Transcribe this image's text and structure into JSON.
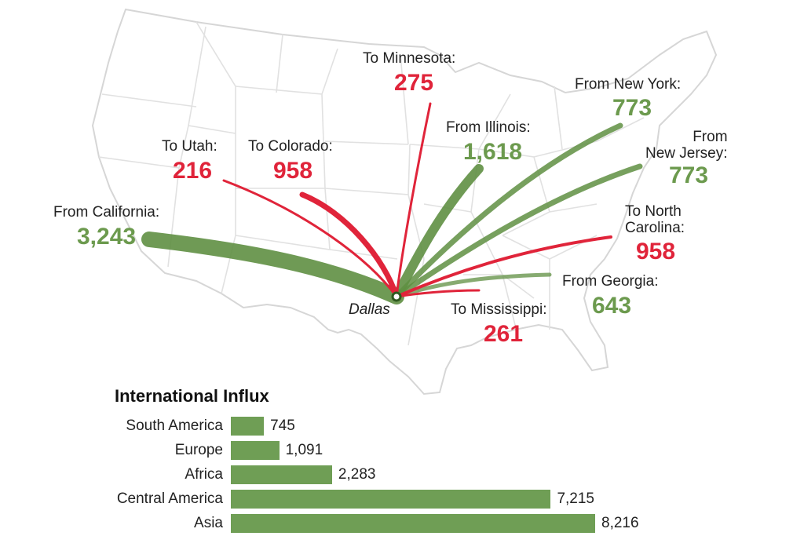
{
  "hub": {
    "name": "Dallas"
  },
  "flows": [
    {
      "id": "california",
      "direction": "in",
      "label": "From California:",
      "value_text": "3,243",
      "value": 3243
    },
    {
      "id": "utah",
      "direction": "out",
      "label": "To Utah:",
      "value_text": "216",
      "value": 216
    },
    {
      "id": "colorado",
      "direction": "out",
      "label": "To Colorado:",
      "value_text": "958",
      "value": 958
    },
    {
      "id": "minnesota",
      "direction": "out",
      "label": "To Minnesota:",
      "value_text": "275",
      "value": 275
    },
    {
      "id": "illinois",
      "direction": "in",
      "label": "From Illinois:",
      "value_text": "1,618",
      "value": 1618
    },
    {
      "id": "new-york",
      "direction": "in",
      "label": "From New York:",
      "value_text": "773",
      "value": 773
    },
    {
      "id": "new-jersey",
      "direction": "in",
      "label": "From\nNew Jersey:",
      "value_text": "773",
      "value": 773
    },
    {
      "id": "north-carolina",
      "direction": "out",
      "label": "To North\nCarolina:",
      "value_text": "958",
      "value": 958
    },
    {
      "id": "georgia",
      "direction": "in",
      "label": "From Georgia:",
      "value_text": "643",
      "value": 643
    },
    {
      "id": "mississippi",
      "direction": "out",
      "label": "To Mississippi:",
      "value_text": "261",
      "value": 261
    }
  ],
  "colors": {
    "inflow": "#6c9a4e",
    "outflow": "#e0243a",
    "bar": "#6f9e55",
    "map_border": "#d8d8d8"
  },
  "chart_data": {
    "type": "bar",
    "orientation": "horizontal",
    "title": "International Influx",
    "categories": [
      "South America",
      "Europe",
      "Africa",
      "Central America",
      "Asia"
    ],
    "values": [
      745,
      1091,
      2283,
      7215,
      8216
    ],
    "value_labels": [
      "745",
      "1,091",
      "2,283",
      "7,215",
      "8,216"
    ]
  }
}
